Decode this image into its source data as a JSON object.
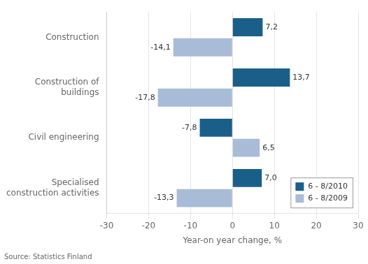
{
  "chart_data": {
    "type": "bar",
    "orientation": "horizontal",
    "categories": [
      "Construction",
      "Construction of\nbuildings",
      "Civil engineering",
      "Specialised\nconstruction activities"
    ],
    "series": [
      {
        "name": "6 - 8/2010",
        "color": "#1a5f8a",
        "values": [
          7.2,
          13.7,
          -7.8,
          7.0
        ],
        "value_labels": [
          "7,2",
          "13,7",
          "-7,8",
          "7,0"
        ]
      },
      {
        "name": "6 - 8/2009",
        "color": "#a8bcd8",
        "values": [
          -14.1,
          -17.8,
          6.5,
          -13.3
        ],
        "value_labels": [
          "-14,1",
          "-17,8",
          "6,5",
          "-13,3"
        ]
      }
    ],
    "xlabel": "Year-on year change, %",
    "xlim": [
      -30,
      30
    ],
    "xticks": [
      -30,
      -20,
      -10,
      0,
      10,
      20,
      30
    ],
    "grid": true,
    "legend": "lower right",
    "data_labels": true,
    "annotations": [
      "Source: Statistics Finland"
    ]
  }
}
